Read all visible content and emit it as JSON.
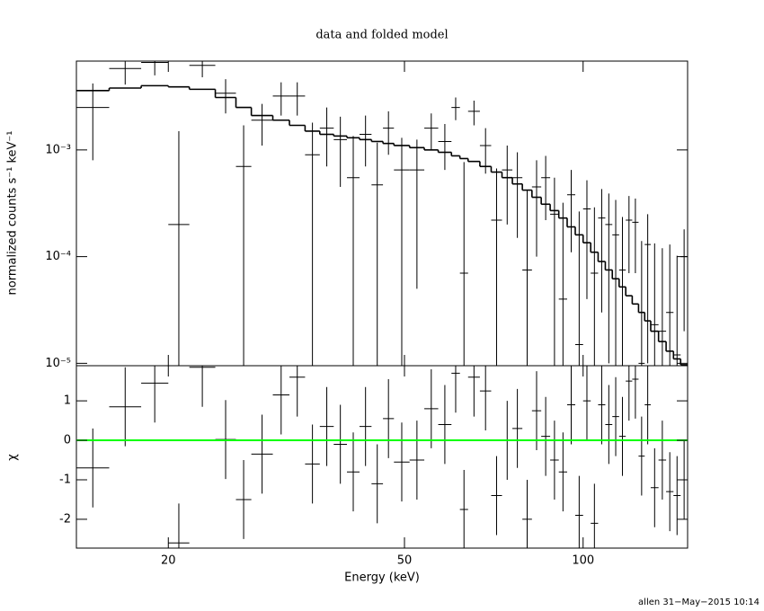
{
  "chart_data": [
    {
      "type": "spectrum",
      "title": "data and folded model",
      "ylabel": "normalized counts s⁻¹ keV⁻¹",
      "xscale": "log",
      "yscale": "log",
      "xlim": [
        14,
        150
      ],
      "ylim": [
        9.5e-06,
        0.0068
      ],
      "yticks": [
        {
          "value": 1e-05,
          "label": "10⁻⁵"
        },
        {
          "value": 0.0001,
          "label": "10⁻⁴"
        },
        {
          "value": 0.001,
          "label": "10⁻³"
        }
      ],
      "x_low": [
        14,
        15.9,
        18,
        20,
        21.7,
        24,
        26,
        27.6,
        30,
        32,
        34,
        36,
        38,
        40,
        42,
        44,
        46,
        48,
        51,
        54,
        57,
        60,
        62,
        64,
        67,
        70,
        73,
        76,
        79,
        82,
        85,
        88,
        91,
        94,
        97,
        100,
        103,
        106,
        109,
        112,
        115,
        118,
        121,
        124,
        127,
        130,
        134,
        138,
        142,
        146
      ],
      "x_high": [
        15.9,
        18,
        20,
        21.7,
        24,
        26,
        27.6,
        30,
        32,
        34,
        36,
        38,
        40,
        42,
        44,
        46,
        48,
        51,
        54,
        57,
        60,
        62,
        64,
        67,
        70,
        73,
        76,
        79,
        82,
        85,
        88,
        91,
        94,
        97,
        100,
        103,
        106,
        109,
        112,
        115,
        118,
        121,
        124,
        127,
        130,
        134,
        138,
        142,
        146,
        150
      ],
      "data": {
        "color": "#000000",
        "values": [
          0.0025,
          0.0058,
          0.0066,
          0.0002,
          0.0062,
          0.0034,
          0.0007,
          0.0019,
          0.0032,
          0.0032,
          0.0009,
          0.0016,
          0.00125,
          0.00055,
          0.0014,
          0.00047,
          0.0016,
          0.00065,
          0.00065,
          0.0016,
          0.0012,
          0.0025,
          7e-05,
          0.0023,
          0.0011,
          0.00022,
          0.00065,
          0.00055,
          7.5e-05,
          0.00045,
          0.00055,
          0.00025,
          4e-05,
          0.00038,
          1.5e-05,
          0.00028,
          7e-05,
          0.00023,
          0.0002,
          0.00016,
          7.5e-05,
          0.00022,
          0.00021,
          1e-05,
          0.00013,
          2.3e-05,
          2e-05,
          3e-05,
          1.2e-05,
          0.0001
        ],
        "errors": [
          0.0017,
          0.0017,
          0.0016,
          0.0013,
          0.0014,
          0.0012,
          0.001,
          0.0008,
          0.0011,
          0.0011,
          0.0009,
          0.0009,
          0.0008,
          0.0008,
          0.0007,
          0.0007,
          0.0007,
          0.00065,
          0.0006,
          0.0006,
          0.00055,
          0.0006,
          0.0007,
          0.0006,
          0.0005,
          0.00045,
          0.00045,
          0.0004,
          0.00035,
          0.00035,
          0.00033,
          0.0003,
          0.00028,
          0.00027,
          0.00025,
          0.00024,
          0.00022,
          0.0002,
          0.00019,
          0.00018,
          0.00016,
          0.00015,
          0.00014,
          0.00013,
          0.00012,
          0.00011,
          0.0001,
          0.0001,
          9e-05,
          8e-05
        ]
      },
      "model": {
        "color": "#000000",
        "values": [
          0.0036,
          0.0038,
          0.004,
          0.0039,
          0.0037,
          0.0031,
          0.0025,
          0.0021,
          0.0019,
          0.0017,
          0.0015,
          0.0014,
          0.00135,
          0.0013,
          0.00125,
          0.0012,
          0.00115,
          0.0011,
          0.00105,
          0.001,
          0.00095,
          0.00088,
          0.00083,
          0.00078,
          0.0007,
          0.00062,
          0.00055,
          0.00048,
          0.00042,
          0.00036,
          0.00031,
          0.00027,
          0.00023,
          0.00019,
          0.00016,
          0.000135,
          0.00011,
          9e-05,
          7.5e-05,
          6.2e-05,
          5.2e-05,
          4.3e-05,
          3.6e-05,
          3e-05,
          2.5e-05,
          2e-05,
          1.6e-05,
          1.3e-05,
          1.1e-05,
          9.7e-06
        ]
      }
    },
    {
      "type": "residuals",
      "ylabel": "χ",
      "xlabel": "Energy (keV)",
      "xscale": "log",
      "xlim": [
        14,
        150
      ],
      "xticks": [
        20,
        50,
        100
      ],
      "ylim": [
        -2.73,
        1.89
      ],
      "yticks": [
        -2,
        -1,
        0,
        1
      ],
      "baseline": 0,
      "baseline_color": "#00ff00",
      "color": "#000000",
      "values": [
        -0.7,
        0.85,
        1.45,
        -2.6,
        1.85,
        0.02,
        -1.5,
        -0.35,
        1.15,
        1.6,
        -0.6,
        0.35,
        -0.1,
        -0.8,
        0.35,
        -1.1,
        0.55,
        -0.55,
        -0.5,
        0.8,
        0.4,
        1.7,
        -1.75,
        1.6,
        1.25,
        -1.4,
        0,
        0.3,
        -2.0,
        0.75,
        0.1,
        -0.5,
        -0.8,
        0.9,
        -1.9,
        1.0,
        -2.1,
        0.9,
        0.4,
        0.6,
        0.1,
        1.5,
        1.55,
        -0.4,
        0.9,
        -1.2,
        -0.5,
        -1.3,
        -1.4,
        -1.0
      ],
      "errors": [
        1,
        1,
        1,
        1,
        1,
        1,
        1,
        1,
        1,
        1,
        1,
        1,
        1,
        1,
        1,
        1,
        1,
        1,
        1,
        1,
        1,
        1,
        1,
        1,
        1,
        1,
        1,
        1,
        1,
        1,
        1,
        1,
        1,
        1,
        1,
        1,
        1,
        1,
        1,
        1,
        1,
        1,
        1,
        1,
        1,
        1,
        1,
        1,
        1,
        1
      ]
    }
  ],
  "footer": "allen 31−May−2015 10:14"
}
